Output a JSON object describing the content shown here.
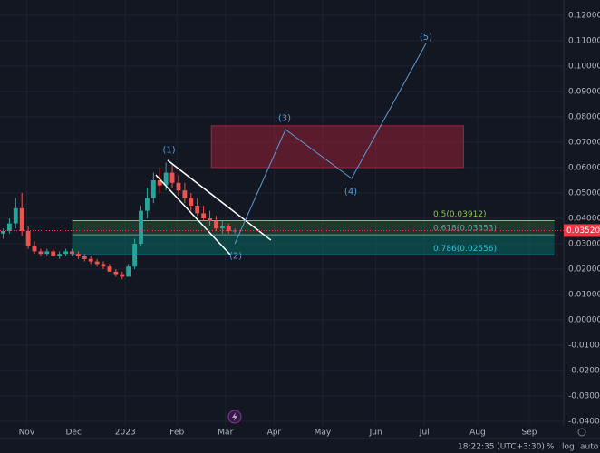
{
  "chart_data": {
    "type": "candlestick",
    "up_color": "#26a69a",
    "down_color": "#ef5350",
    "xlim": [
      0,
      360
    ],
    "xticks": [
      {
        "value": 17,
        "label": "Nov"
      },
      {
        "value": 47,
        "label": "Dec"
      },
      {
        "value": 80,
        "label": "2023"
      },
      {
        "value": 113,
        "label": "Feb"
      },
      {
        "value": 144,
        "label": "Mar"
      },
      {
        "value": 175,
        "label": "Apr"
      },
      {
        "value": 206,
        "label": "May"
      },
      {
        "value": 240,
        "label": "Jun"
      },
      {
        "value": 271,
        "label": "Jul"
      },
      {
        "value": 305,
        "label": "Aug"
      },
      {
        "value": 338,
        "label": "Sep"
      }
    ],
    "ylim": [
      -0.04,
      0.12
    ],
    "yticks": [
      {
        "value": 0.12,
        "label": "0.12000"
      },
      {
        "value": 0.11,
        "label": "0.11000"
      },
      {
        "value": 0.1,
        "label": "0.10000"
      },
      {
        "value": 0.09,
        "label": "0.09000"
      },
      {
        "value": 0.08,
        "label": "0.08000"
      },
      {
        "value": 0.07,
        "label": "0.07000"
      },
      {
        "value": 0.06,
        "label": "0.06000"
      },
      {
        "value": 0.05,
        "label": "0.05000"
      },
      {
        "value": 0.04,
        "label": "0.04000"
      },
      {
        "value": 0.03,
        "label": "0.03000"
      },
      {
        "value": 0.02,
        "label": "0.02000"
      },
      {
        "value": 0.01,
        "label": "0.01000"
      },
      {
        "value": 0,
        "label": "0.00000"
      },
      {
        "value": -0.01,
        "label": "-0.01000"
      },
      {
        "value": -0.02,
        "label": "-0.02000"
      },
      {
        "value": -0.03,
        "label": "-0.03000"
      },
      {
        "value": -0.04,
        "label": "-0.04000"
      }
    ],
    "grid": true,
    "candles": [
      {
        "x": 2,
        "o": 0.034,
        "h": 0.036,
        "l": 0.032,
        "c": 0.035
      },
      {
        "x": 6,
        "o": 0.035,
        "h": 0.04,
        "l": 0.034,
        "c": 0.038
      },
      {
        "x": 10,
        "o": 0.038,
        "h": 0.048,
        "l": 0.036,
        "c": 0.044
      },
      {
        "x": 14,
        "o": 0.044,
        "h": 0.05,
        "l": 0.033,
        "c": 0.035
      },
      {
        "x": 18,
        "o": 0.035,
        "h": 0.037,
        "l": 0.028,
        "c": 0.029
      },
      {
        "x": 22,
        "o": 0.029,
        "h": 0.031,
        "l": 0.026,
        "c": 0.027
      },
      {
        "x": 26,
        "o": 0.027,
        "h": 0.028,
        "l": 0.025,
        "c": 0.026
      },
      {
        "x": 30,
        "o": 0.026,
        "h": 0.028,
        "l": 0.025,
        "c": 0.027
      },
      {
        "x": 34,
        "o": 0.027,
        "h": 0.028,
        "l": 0.025,
        "c": 0.025
      },
      {
        "x": 38,
        "o": 0.025,
        "h": 0.027,
        "l": 0.024,
        "c": 0.026
      },
      {
        "x": 42,
        "o": 0.026,
        "h": 0.028,
        "l": 0.025,
        "c": 0.027
      },
      {
        "x": 46,
        "o": 0.027,
        "h": 0.028,
        "l": 0.025,
        "c": 0.026
      },
      {
        "x": 50,
        "o": 0.026,
        "h": 0.027,
        "l": 0.024,
        "c": 0.025
      },
      {
        "x": 54,
        "o": 0.025,
        "h": 0.026,
        "l": 0.023,
        "c": 0.024
      },
      {
        "x": 58,
        "o": 0.024,
        "h": 0.025,
        "l": 0.022,
        "c": 0.023
      },
      {
        "x": 62,
        "o": 0.023,
        "h": 0.024,
        "l": 0.021,
        "c": 0.022
      },
      {
        "x": 66,
        "o": 0.022,
        "h": 0.023,
        "l": 0.02,
        "c": 0.021
      },
      {
        "x": 70,
        "o": 0.021,
        "h": 0.022,
        "l": 0.019,
        "c": 0.019
      },
      {
        "x": 74,
        "o": 0.019,
        "h": 0.02,
        "l": 0.017,
        "c": 0.018
      },
      {
        "x": 78,
        "o": 0.018,
        "h": 0.019,
        "l": 0.016,
        "c": 0.017
      },
      {
        "x": 82,
        "o": 0.017,
        "h": 0.022,
        "l": 0.017,
        "c": 0.021
      },
      {
        "x": 86,
        "o": 0.021,
        "h": 0.032,
        "l": 0.02,
        "c": 0.03
      },
      {
        "x": 90,
        "o": 0.03,
        "h": 0.045,
        "l": 0.029,
        "c": 0.043
      },
      {
        "x": 94,
        "o": 0.043,
        "h": 0.052,
        "l": 0.04,
        "c": 0.048
      },
      {
        "x": 98,
        "o": 0.048,
        "h": 0.058,
        "l": 0.046,
        "c": 0.055
      },
      {
        "x": 102,
        "o": 0.055,
        "h": 0.06,
        "l": 0.05,
        "c": 0.053
      },
      {
        "x": 106,
        "o": 0.053,
        "h": 0.062,
        "l": 0.051,
        "c": 0.058
      },
      {
        "x": 110,
        "o": 0.058,
        "h": 0.061,
        "l": 0.052,
        "c": 0.054
      },
      {
        "x": 114,
        "o": 0.054,
        "h": 0.057,
        "l": 0.049,
        "c": 0.051
      },
      {
        "x": 118,
        "o": 0.051,
        "h": 0.054,
        "l": 0.046,
        "c": 0.048
      },
      {
        "x": 122,
        "o": 0.048,
        "h": 0.05,
        "l": 0.043,
        "c": 0.045
      },
      {
        "x": 126,
        "o": 0.045,
        "h": 0.048,
        "l": 0.041,
        "c": 0.042
      },
      {
        "x": 130,
        "o": 0.042,
        "h": 0.045,
        "l": 0.039,
        "c": 0.04
      },
      {
        "x": 134,
        "o": 0.04,
        "h": 0.043,
        "l": 0.037,
        "c": 0.039
      },
      {
        "x": 138,
        "o": 0.039,
        "h": 0.041,
        "l": 0.035,
        "c": 0.036
      },
      {
        "x": 142,
        "o": 0.036,
        "h": 0.039,
        "l": 0.034,
        "c": 0.037
      },
      {
        "x": 146,
        "o": 0.037,
        "h": 0.038,
        "l": 0.034,
        "c": 0.035
      },
      {
        "x": 150,
        "o": 0.035,
        "h": 0.036,
        "l": 0.034,
        "c": 0.0352
      }
    ],
    "last_price": {
      "value": 0.0352,
      "label": "0.03520",
      "color": "#f23645"
    },
    "fib_levels": [
      {
        "value": 0.03912,
        "label": "0.5(0.03912)",
        "color": "#8bc34a"
      },
      {
        "value": 0.03353,
        "label": "0.618(0.03353)",
        "color": "#66a19a"
      },
      {
        "value": 0.02556,
        "label": "0.786(0.02556)",
        "color": "#26c6da"
      }
    ],
    "fib_x": [
      46,
      354
    ],
    "zone": {
      "x": [
        135,
        296
      ],
      "y": [
        0.06,
        0.0765
      ],
      "color": "#b2223a"
    },
    "channel": [
      {
        "x": [
          107,
          173
        ],
        "y": [
          0.0629,
          0.0314
        ]
      },
      {
        "x": [
          99.5,
          147
        ],
        "y": [
          0.0571,
          0.0257
        ]
      }
    ],
    "wave": {
      "color": "#5b9bd5",
      "x": [
        150,
        182.3,
        224.5,
        272
      ],
      "y": [
        0.03,
        0.075,
        0.0557,
        0.1089
      ]
    },
    "wave_labels": [
      {
        "label": "(1)",
        "x": 108,
        "y": 0.0669
      },
      {
        "label": "(2)",
        "x": 150.5,
        "y": 0.0252
      },
      {
        "label": "(3)",
        "x": 181.7,
        "y": 0.0795
      },
      {
        "label": "(4)",
        "x": 224,
        "y": 0.0505
      },
      {
        "label": "(5)",
        "x": 272,
        "y": 0.1114
      }
    ],
    "footer": {
      "clock": "18:22:35 (UTC+3:30)",
      "percent": "%",
      "log": "log",
      "auto": "auto"
    }
  }
}
